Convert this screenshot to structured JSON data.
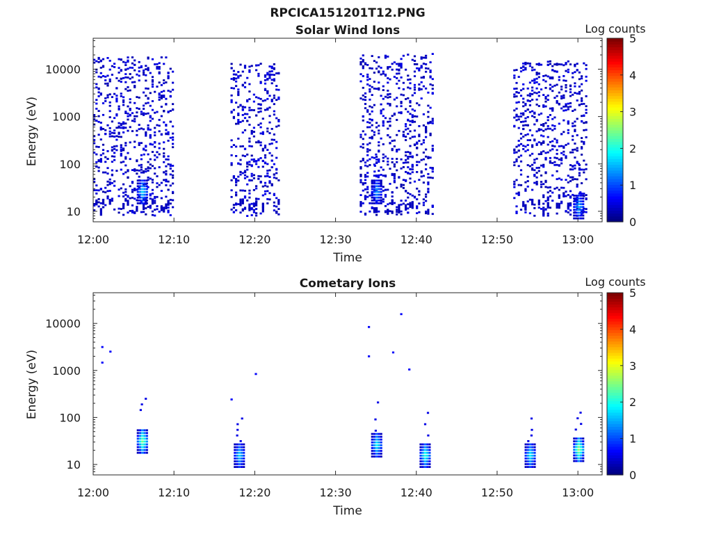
{
  "figure_title": "RPCICA151201T12.PNG",
  "chart_data": [
    {
      "type": "heatmap",
      "title": "Solar Wind Ions",
      "xlabel": "Time",
      "ylabel": "Energy (eV)",
      "x_ticks": [
        "12:00",
        "12:10",
        "12:20",
        "12:30",
        "12:40",
        "12:50",
        "13:00"
      ],
      "x_range": [
        "12:00",
        "13:03"
      ],
      "y_scale": "log",
      "y_ticks": [
        "10",
        "100",
        "1000",
        "10000"
      ],
      "y_range": [
        6,
        45000
      ],
      "colorbar": {
        "label": "Log counts",
        "ticks": [
          "0",
          "1",
          "2",
          "3",
          "4",
          "5"
        ],
        "range": [
          0,
          5
        ],
        "colormap": "jet"
      },
      "measurement_intervals": [
        {
          "start": "12:00",
          "end": "12:10",
          "min_energy_eV": 6,
          "max_energy_eV": 17000
        },
        {
          "start": "12:17",
          "end": "12:23",
          "min_energy_eV": 6,
          "max_energy_eV": 13000
        },
        {
          "start": "12:33",
          "end": "12:42",
          "min_energy_eV": 6,
          "max_energy_eV": 20000
        },
        {
          "start": "12:52",
          "end": "13:01",
          "min_energy_eV": 6,
          "max_energy_eV": 14000
        }
      ],
      "peaks": [
        {
          "time": "12:06",
          "energy_eV": 25,
          "log_counts": 1.8
        },
        {
          "time": "12:35",
          "energy_eV": 25,
          "log_counts": 1.5
        },
        {
          "time": "13:00",
          "energy_eV": 12,
          "log_counts": 1.6
        }
      ]
    },
    {
      "type": "heatmap",
      "title": "Cometary Ions",
      "xlabel": "Time",
      "ylabel": "Energy (eV)",
      "x_ticks": [
        "12:00",
        "12:10",
        "12:20",
        "12:30",
        "12:40",
        "12:50",
        "13:00"
      ],
      "x_range": [
        "12:00",
        "13:03"
      ],
      "y_scale": "log",
      "y_ticks": [
        "10",
        "100",
        "1000",
        "10000"
      ],
      "y_range": [
        6,
        45000
      ],
      "colorbar": {
        "label": "Log counts",
        "ticks": [
          "0",
          "1",
          "2",
          "3",
          "4",
          "5"
        ],
        "range": [
          0,
          5
        ],
        "colormap": "jet"
      },
      "peaks": [
        {
          "time": "12:06",
          "energy_eV": 30,
          "log_counts": 2.6
        },
        {
          "time": "12:18",
          "energy_eV": 15,
          "log_counts": 1.8
        },
        {
          "time": "12:35",
          "energy_eV": 25,
          "log_counts": 2.0
        },
        {
          "time": "12:41",
          "energy_eV": 15,
          "log_counts": 2.2
        },
        {
          "time": "12:54",
          "energy_eV": 15,
          "log_counts": 2.0
        },
        {
          "time": "13:00",
          "energy_eV": 20,
          "log_counts": 2.8
        }
      ]
    }
  ]
}
